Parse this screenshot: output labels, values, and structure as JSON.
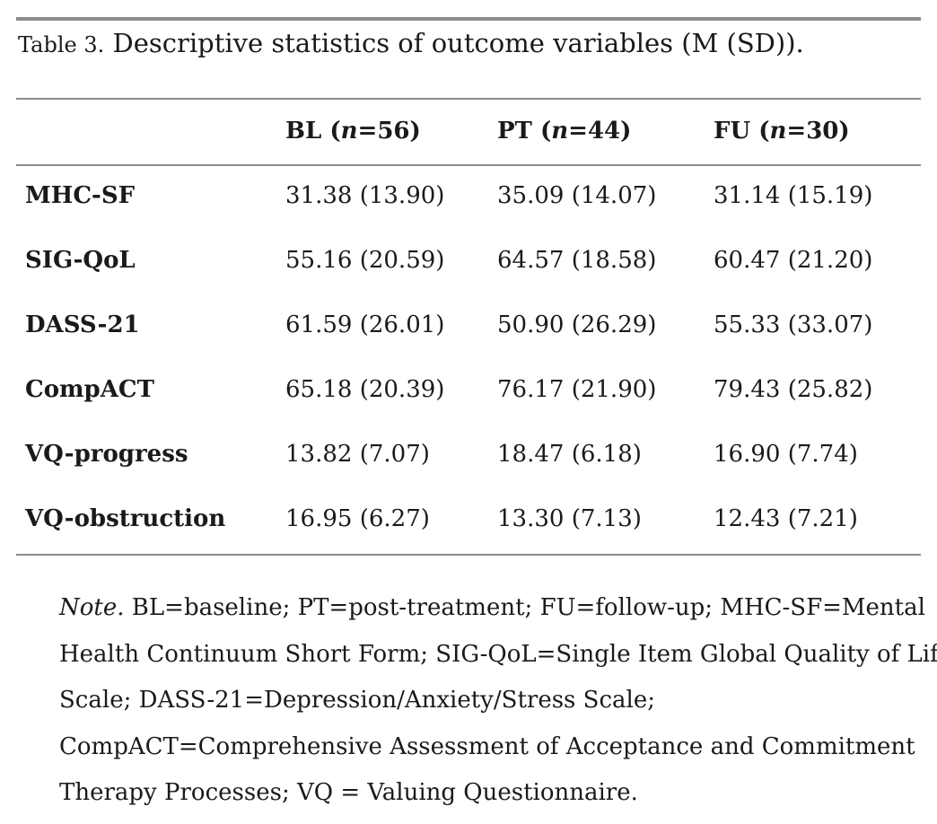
{
  "caption": {
    "label": "Table 3.",
    "text": "Descriptive statistics of outcome variables (M (SD))."
  },
  "columns": [
    {
      "name": "BL",
      "n_label": "n",
      "n_value": "=56"
    },
    {
      "name": "PT",
      "n_label": "n",
      "n_value": "=44"
    },
    {
      "name": "FU",
      "n_label": "n",
      "n_value": "=30"
    }
  ],
  "rows": [
    {
      "label": "MHC-SF",
      "values": [
        "31.38 (13.90)",
        "35.09 (14.07)",
        "31.14 (15.19)"
      ]
    },
    {
      "label": "SIG-QoL",
      "values": [
        "55.16 (20.59)",
        "64.57 (18.58)",
        "60.47 (21.20)"
      ]
    },
    {
      "label": "DASS-21",
      "values": [
        "61.59 (26.01)",
        "50.90 (26.29)",
        "55.33 (33.07)"
      ]
    },
    {
      "label": "CompACT",
      "values": [
        "65.18 (20.39)",
        "76.17 (21.90)",
        "79.43 (25.82)"
      ]
    },
    {
      "label": "VQ-progress",
      "values": [
        "13.82 (7.07)",
        "18.47 (6.18)",
        "16.90 (7.74)"
      ]
    },
    {
      "label": "VQ-obstruction",
      "values": [
        "16.95 (6.27)",
        "13.30 (7.13)",
        "12.43 (7.21)"
      ]
    }
  ],
  "note": {
    "prefix": "Note.",
    "lines": [
      " BL=baseline; PT=post-treatment; FU=follow-up; MHC-SF=Mental",
      "Health Continuum Short Form; SIG-QoL=Single Item Global Quality of Life",
      "Scale; DASS-21=Depression/Anxiety/Stress Scale;",
      "CompACT=Comprehensive Assessment of Acceptance and Commitment",
      "Therapy Processes; VQ = Valuing Questionnaire."
    ]
  }
}
